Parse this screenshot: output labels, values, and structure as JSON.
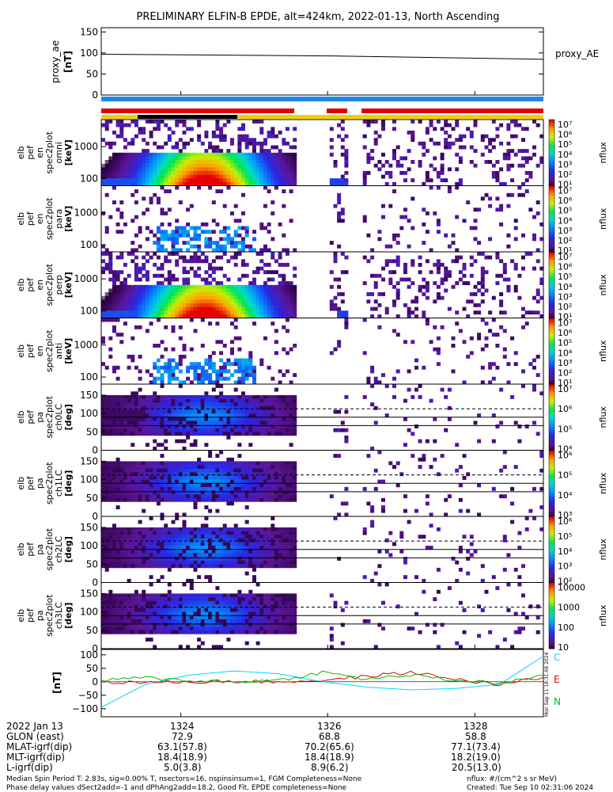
{
  "title": "PRELIMINARY ELFIN-B EPDE, alt=424km, 2022-01-13, North Ascending",
  "proxy_panel": {
    "ylabel": [
      "proxy_ae",
      "[nT]"
    ],
    "legend": "proxy_AE",
    "yticks": [
      "150",
      "100",
      "50",
      "0"
    ]
  },
  "spectral_panels": [
    {
      "ylabel": [
        "elb",
        "pef",
        "en",
        "spec2plot",
        "omni",
        "[keV]"
      ],
      "yticks": [
        "1000",
        "100"
      ],
      "cbar_label": "nflux",
      "cbar_ticks": [
        "10⁷",
        "10⁶",
        "10⁵",
        "10⁴",
        "10³",
        "10²",
        "10¹"
      ]
    },
    {
      "ylabel": [
        "elb",
        "pef",
        "en",
        "spec2plot",
        "para",
        "[keV]"
      ],
      "yticks": [
        "1000",
        "100"
      ],
      "cbar_label": "nflux",
      "cbar_ticks": [
        "10⁷",
        "10⁶",
        "10⁵",
        "10⁴",
        "10³",
        "10²",
        "10¹"
      ]
    },
    {
      "ylabel": [
        "elb",
        "pef",
        "en",
        "spec2plot",
        "perp",
        "[keV]"
      ],
      "yticks": [
        "1000",
        "100"
      ],
      "cbar_label": "nflux",
      "cbar_ticks": [
        "10⁷",
        "10⁶",
        "10⁵",
        "10⁴",
        "10³",
        "10²",
        "10¹"
      ]
    },
    {
      "ylabel": [
        "elb",
        "pef",
        "en",
        "spec2plot",
        "anti",
        "[keV]"
      ],
      "yticks": [
        "1000",
        "100"
      ],
      "cbar_label": "nflux",
      "cbar_ticks": [
        "10⁷",
        "10⁶",
        "10⁵",
        "10⁴",
        "10³",
        "10²",
        "10¹"
      ]
    }
  ],
  "pa_panels": [
    {
      "ylabel": [
        "elb",
        "pef",
        "pa",
        "spec2plot",
        "ch0LC",
        "[deg]"
      ],
      "yticks": [
        "150",
        "100",
        "50",
        "0"
      ],
      "cbar_label": "nflux",
      "cbar_ticks": [
        "10⁷",
        "10⁶",
        "10⁵",
        "10⁴"
      ]
    },
    {
      "ylabel": [
        "elb",
        "pef",
        "pa",
        "spec2plot",
        "ch1LC",
        "[deg]"
      ],
      "yticks": [
        "150",
        "100",
        "50",
        "0"
      ],
      "cbar_label": "nflux",
      "cbar_ticks": [
        "10⁶",
        "10⁵",
        "10⁴",
        "10³"
      ]
    },
    {
      "ylabel": [
        "elb",
        "pef",
        "pa",
        "spec2plot",
        "ch2LC",
        "[deg]"
      ],
      "yticks": [
        "150",
        "100",
        "50",
        "0"
      ],
      "cbar_label": "nflux",
      "cbar_ticks": [
        "10⁶",
        "10⁵",
        "10⁴",
        "10³",
        "10²"
      ]
    },
    {
      "ylabel": [
        "elb",
        "pef",
        "pa",
        "spec2plot",
        "ch3LC",
        "[deg]"
      ],
      "yticks": [
        "150",
        "100",
        "50",
        "0"
      ],
      "cbar_label": "nflux",
      "cbar_ticks": [
        "10000",
        "1000",
        "100",
        "10"
      ]
    }
  ],
  "mag_panel": {
    "ylabel": "[nT]",
    "yticks": [
      "100",
      "50",
      "0",
      "−50",
      "−100"
    ],
    "legend": [
      {
        "name": "C",
        "color": "#00d8ff"
      },
      {
        "name": "E",
        "color": "#e00000"
      },
      {
        "name": "N",
        "color": "#00c000"
      }
    ],
    "side_label": "Mon Sep 11 18:31:06 2024"
  },
  "bottom_table": {
    "labels": [
      "2022 Jan 13",
      "GLON (east)",
      "MLAT-igrf(dip)",
      "MLT-igrf(dip)",
      "L-igrf(dip)"
    ],
    "columns": [
      {
        "time": "1324",
        "vals": [
          "72.9",
          "63.1(57.8)",
          "18.4(18.9)",
          "5.0(3.8)"
        ]
      },
      {
        "time": "1326",
        "vals": [
          "68.8",
          "70.2(65.6)",
          "18.4(18.9)",
          "8.9(6.2)"
        ]
      },
      {
        "time": "1328",
        "vals": [
          "58.8",
          "77.1(73.4)",
          "18.2(19.0)",
          "20.5(13.0)"
        ]
      }
    ]
  },
  "footer": {
    "line1": "Median Spin Period T: 2.83s, sig=0.00% T, nsectors=16, nspinsinsum=1, FGM Completeness=None",
    "line2": "Phase delay values dSect2add=-1 and dPhAng2add=18.2, Good Fit, EPDE completeness=None",
    "units": "nflux: #/(cm^2 s sr MeV)",
    "created": "Created: Tue Sep 10 02:31:06 2024"
  },
  "colors": {
    "bar_blue": "#1e88e8",
    "bar_red": "#e00000",
    "bar_yellow": "#f0d000",
    "bar_black": "#000000"
  },
  "chart_data": {
    "type": "heatmap",
    "title": "PRELIMINARY ELFIN-B EPDE, alt=424km, 2022-01-13, North Ascending",
    "x_ticks": [
      "1324",
      "1326",
      "1328"
    ],
    "proxy_ae": {
      "x": [
        "start",
        "1326",
        "end"
      ],
      "y": [
        97,
        93,
        85
      ],
      "ylim": [
        0,
        160
      ]
    },
    "spectral_ylim_keV": [
      60,
      7000
    ],
    "spectral_yscale": "log",
    "pa_ylim_deg": [
      0,
      180
    ],
    "mag_ylim_nT": [
      -130,
      120
    ],
    "mag_series": [
      {
        "name": "C",
        "x": [
          0,
          0.1,
          0.2,
          0.3,
          0.4,
          0.5,
          0.6,
          0.7,
          0.8,
          0.9,
          1.0
        ],
        "y": [
          -95,
          -10,
          25,
          40,
          30,
          0,
          -20,
          -30,
          -25,
          -10,
          95
        ]
      },
      {
        "name": "E",
        "x": [
          0,
          0.1,
          0.2,
          0.3,
          0.4,
          0.5,
          0.6,
          0.7,
          0.8,
          0.9,
          1.0
        ],
        "y": [
          0,
          -3,
          0,
          2,
          0,
          5,
          20,
          35,
          10,
          -10,
          15
        ]
      },
      {
        "name": "N",
        "x": [
          0,
          0.1,
          0.2,
          0.3,
          0.4,
          0.5,
          0.6,
          0.7,
          0.8,
          0.9,
          1.0
        ],
        "y": [
          5,
          15,
          5,
          0,
          5,
          35,
          10,
          25,
          5,
          -5,
          20
        ]
      }
    ]
  }
}
